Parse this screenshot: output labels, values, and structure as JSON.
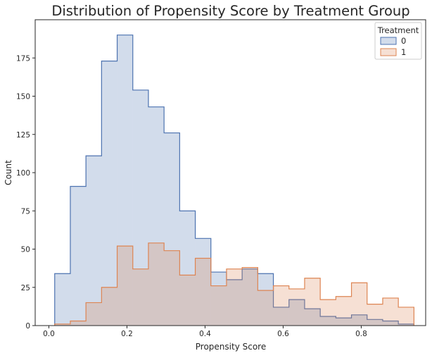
{
  "chart_data": {
    "type": "histogram-step",
    "title": "Distribution of Propensity Score by Treatment Group",
    "xlabel": "Propensity Score",
    "ylabel": "Count",
    "xlim": [
      -0.035,
      0.965
    ],
    "ylim": [
      0,
      200
    ],
    "xticks": [
      0.0,
      0.2,
      0.4,
      0.6,
      0.8
    ],
    "xtick_labels": [
      "0.0",
      "0.2",
      "0.4",
      "0.6",
      "0.8"
    ],
    "yticks": [
      0,
      25,
      50,
      75,
      100,
      125,
      150,
      175
    ],
    "ytick_labels": [
      "0",
      "25",
      "50",
      "75",
      "100",
      "125",
      "150",
      "175"
    ],
    "grid": false,
    "legend": {
      "title": "Treatment",
      "placement": "top-right"
    },
    "bin_edges": [
      0.015,
      0.055,
      0.095,
      0.135,
      0.175,
      0.215,
      0.255,
      0.295,
      0.335,
      0.375,
      0.415,
      0.455,
      0.495,
      0.535,
      0.575,
      0.615,
      0.655,
      0.695,
      0.735,
      0.775,
      0.815,
      0.855,
      0.895,
      0.935
    ],
    "series": [
      {
        "name": "0",
        "line_color": "#4c72b0",
        "fill_color": "#4c72b0",
        "values": [
          34,
          91,
          111,
          173,
          190,
          154,
          143,
          126,
          75,
          57,
          35,
          30,
          37,
          34,
          12,
          17,
          11,
          6,
          5,
          7,
          4,
          3,
          1
        ]
      },
      {
        "name": "1",
        "line_color": "#dd8452",
        "fill_color": "#dd8452",
        "values": [
          1,
          3,
          15,
          25,
          52,
          37,
          54,
          49,
          33,
          44,
          26,
          37,
          38,
          23,
          26,
          24,
          31,
          17,
          19,
          28,
          14,
          18,
          12
        ]
      }
    ]
  }
}
